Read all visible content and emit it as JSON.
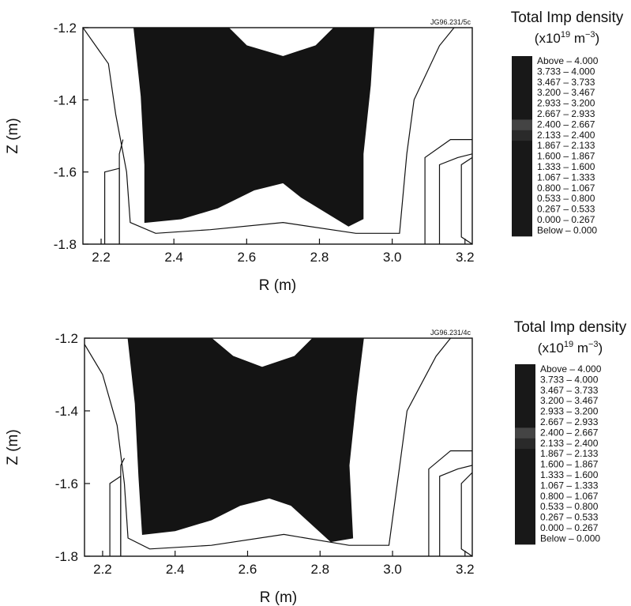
{
  "chart_data": [
    {
      "type": "heatmap",
      "id_label": "JG96.231/5c",
      "xlabel": "R (m)",
      "ylabel": "Z (m)",
      "xlim": [
        2.15,
        3.22
      ],
      "ylim": [
        -1.8,
        -1.2
      ],
      "x_ticks": [
        "2.2",
        "2.4",
        "2.6",
        "2.8",
        "3.0",
        "3.2"
      ],
      "y_ticks": [
        "-1.2",
        "-1.4",
        "-1.6",
        "-1.8"
      ],
      "legend": {
        "title": "Total Imp density",
        "unit_prefix": "(x10",
        "unit_exp1": "19",
        "unit_mid": " m",
        "unit_exp2": "−3",
        "unit_suffix": ")",
        "entries": [
          "Above – 4.000",
          "3.733 – 4.000",
          "3.467 – 3.733",
          "3.200 – 3.467",
          "2.933 – 3.200",
          "2.667 – 2.933",
          "2.400 – 2.667",
          "2.133 – 2.400",
          "1.867 – 2.133",
          "1.600 – 1.867",
          "1.333 – 1.600",
          "1.067 – 1.333",
          "0.800 – 1.067",
          "0.533 – 0.800",
          "0.267 – 0.533",
          "0.000 – 0.267",
          "Below – 0.000"
        ]
      },
      "high_density_region": [
        [
          2.29,
          -1.2
        ],
        [
          2.95,
          -1.2
        ],
        [
          2.94,
          -1.36
        ],
        [
          2.92,
          -1.55
        ],
        [
          2.92,
          -1.73
        ],
        [
          2.88,
          -1.75
        ],
        [
          2.75,
          -1.67
        ],
        [
          2.7,
          -1.63
        ],
        [
          2.62,
          -1.65
        ],
        [
          2.52,
          -1.7
        ],
        [
          2.42,
          -1.73
        ],
        [
          2.32,
          -1.74
        ],
        [
          2.32,
          -1.58
        ],
        [
          2.31,
          -1.39
        ]
      ],
      "white_cap_top": [
        [
          2.55,
          -1.2
        ],
        [
          2.6,
          -1.25
        ],
        [
          2.7,
          -1.28
        ],
        [
          2.79,
          -1.25
        ],
        [
          2.84,
          -1.2
        ]
      ],
      "contours": [
        [
          [
            2.15,
            -1.2
          ],
          [
            2.22,
            -1.3
          ],
          [
            2.24,
            -1.44
          ],
          [
            2.27,
            -1.6
          ],
          [
            2.28,
            -1.74
          ],
          [
            2.35,
            -1.77
          ],
          [
            2.5,
            -1.76
          ],
          [
            2.7,
            -1.74
          ],
          [
            2.9,
            -1.77
          ],
          [
            3.02,
            -1.77
          ],
          [
            3.04,
            -1.55
          ],
          [
            3.06,
            -1.4
          ],
          [
            3.13,
            -1.25
          ],
          [
            3.17,
            -1.2
          ]
        ],
        [
          [
            2.21,
            -1.8
          ],
          [
            2.21,
            -1.6
          ],
          [
            2.25,
            -1.59
          ],
          [
            2.25,
            -1.8
          ]
        ],
        [
          [
            2.25,
            -1.8
          ],
          [
            2.25,
            -1.55
          ],
          [
            2.26,
            -1.51
          ]
        ],
        [
          [
            3.09,
            -1.8
          ],
          [
            3.09,
            -1.56
          ],
          [
            3.16,
            -1.51
          ],
          [
            3.22,
            -1.51
          ]
        ],
        [
          [
            3.13,
            -1.8
          ],
          [
            3.13,
            -1.58
          ],
          [
            3.18,
            -1.56
          ],
          [
            3.22,
            -1.55
          ]
        ],
        [
          [
            3.22,
            -1.56
          ],
          [
            3.19,
            -1.58
          ],
          [
            3.19,
            -1.78
          ],
          [
            3.22,
            -1.8
          ]
        ]
      ]
    },
    {
      "type": "heatmap",
      "id_label": "JG96.231/4c",
      "xlabel": "R (m)",
      "ylabel": "Z (m)",
      "xlim": [
        2.15,
        3.22
      ],
      "ylim": [
        -1.8,
        -1.2
      ],
      "x_ticks": [
        "2.2",
        "2.4",
        "2.6",
        "2.8",
        "3.0",
        "3.2"
      ],
      "y_ticks": [
        "-1.2",
        "-1.4",
        "-1.6",
        "-1.8"
      ],
      "legend": {
        "title": "Total Imp density",
        "unit_prefix": "(x10",
        "unit_exp1": "19",
        "unit_mid": " m",
        "unit_exp2": "−3",
        "unit_suffix": ")",
        "entries": [
          "Above – 4.000",
          "3.733 – 4.000",
          "3.467 – 3.733",
          "3.200 – 3.467",
          "2.933 – 3.200",
          "2.667 – 2.933",
          "2.400 – 2.667",
          "2.133 – 2.400",
          "1.867 – 2.133",
          "1.600 – 1.867",
          "1.333 – 1.600",
          "1.067 – 1.333",
          "0.800 – 1.067",
          "0.533 – 0.800",
          "0.267 – 0.533",
          "0.000 – 0.267",
          "Below – 0.000"
        ]
      },
      "high_density_region": [
        [
          2.27,
          -1.2
        ],
        [
          2.92,
          -1.2
        ],
        [
          2.9,
          -1.36
        ],
        [
          2.88,
          -1.55
        ],
        [
          2.89,
          -1.75
        ],
        [
          2.83,
          -1.76
        ],
        [
          2.72,
          -1.66
        ],
        [
          2.66,
          -1.64
        ],
        [
          2.58,
          -1.66
        ],
        [
          2.5,
          -1.7
        ],
        [
          2.4,
          -1.73
        ],
        [
          2.31,
          -1.74
        ],
        [
          2.3,
          -1.58
        ],
        [
          2.29,
          -1.38
        ]
      ],
      "white_cap_top": [
        [
          2.5,
          -1.2
        ],
        [
          2.56,
          -1.25
        ],
        [
          2.64,
          -1.28
        ],
        [
          2.73,
          -1.25
        ],
        [
          2.78,
          -1.2
        ]
      ],
      "contours": [
        [
          [
            2.14,
            -1.2
          ],
          [
            2.2,
            -1.3
          ],
          [
            2.24,
            -1.44
          ],
          [
            2.26,
            -1.6
          ],
          [
            2.27,
            -1.75
          ],
          [
            2.33,
            -1.78
          ],
          [
            2.5,
            -1.77
          ],
          [
            2.7,
            -1.74
          ],
          [
            2.88,
            -1.77
          ],
          [
            2.99,
            -1.77
          ],
          [
            3.02,
            -1.55
          ],
          [
            3.04,
            -1.4
          ],
          [
            3.12,
            -1.25
          ],
          [
            3.16,
            -1.2
          ]
        ],
        [
          [
            2.22,
            -1.8
          ],
          [
            2.22,
            -1.6
          ],
          [
            2.25,
            -1.58
          ],
          [
            2.25,
            -1.8
          ]
        ],
        [
          [
            2.25,
            -1.8
          ],
          [
            2.25,
            -1.55
          ],
          [
            2.26,
            -1.53
          ]
        ],
        [
          [
            3.1,
            -1.8
          ],
          [
            3.1,
            -1.56
          ],
          [
            3.16,
            -1.51
          ],
          [
            3.22,
            -1.51
          ]
        ],
        [
          [
            3.13,
            -1.8
          ],
          [
            3.13,
            -1.58
          ],
          [
            3.18,
            -1.56
          ],
          [
            3.22,
            -1.55
          ]
        ],
        [
          [
            3.22,
            -1.57
          ],
          [
            3.19,
            -1.6
          ],
          [
            3.19,
            -1.78
          ],
          [
            3.22,
            -1.8
          ]
        ]
      ]
    }
  ]
}
